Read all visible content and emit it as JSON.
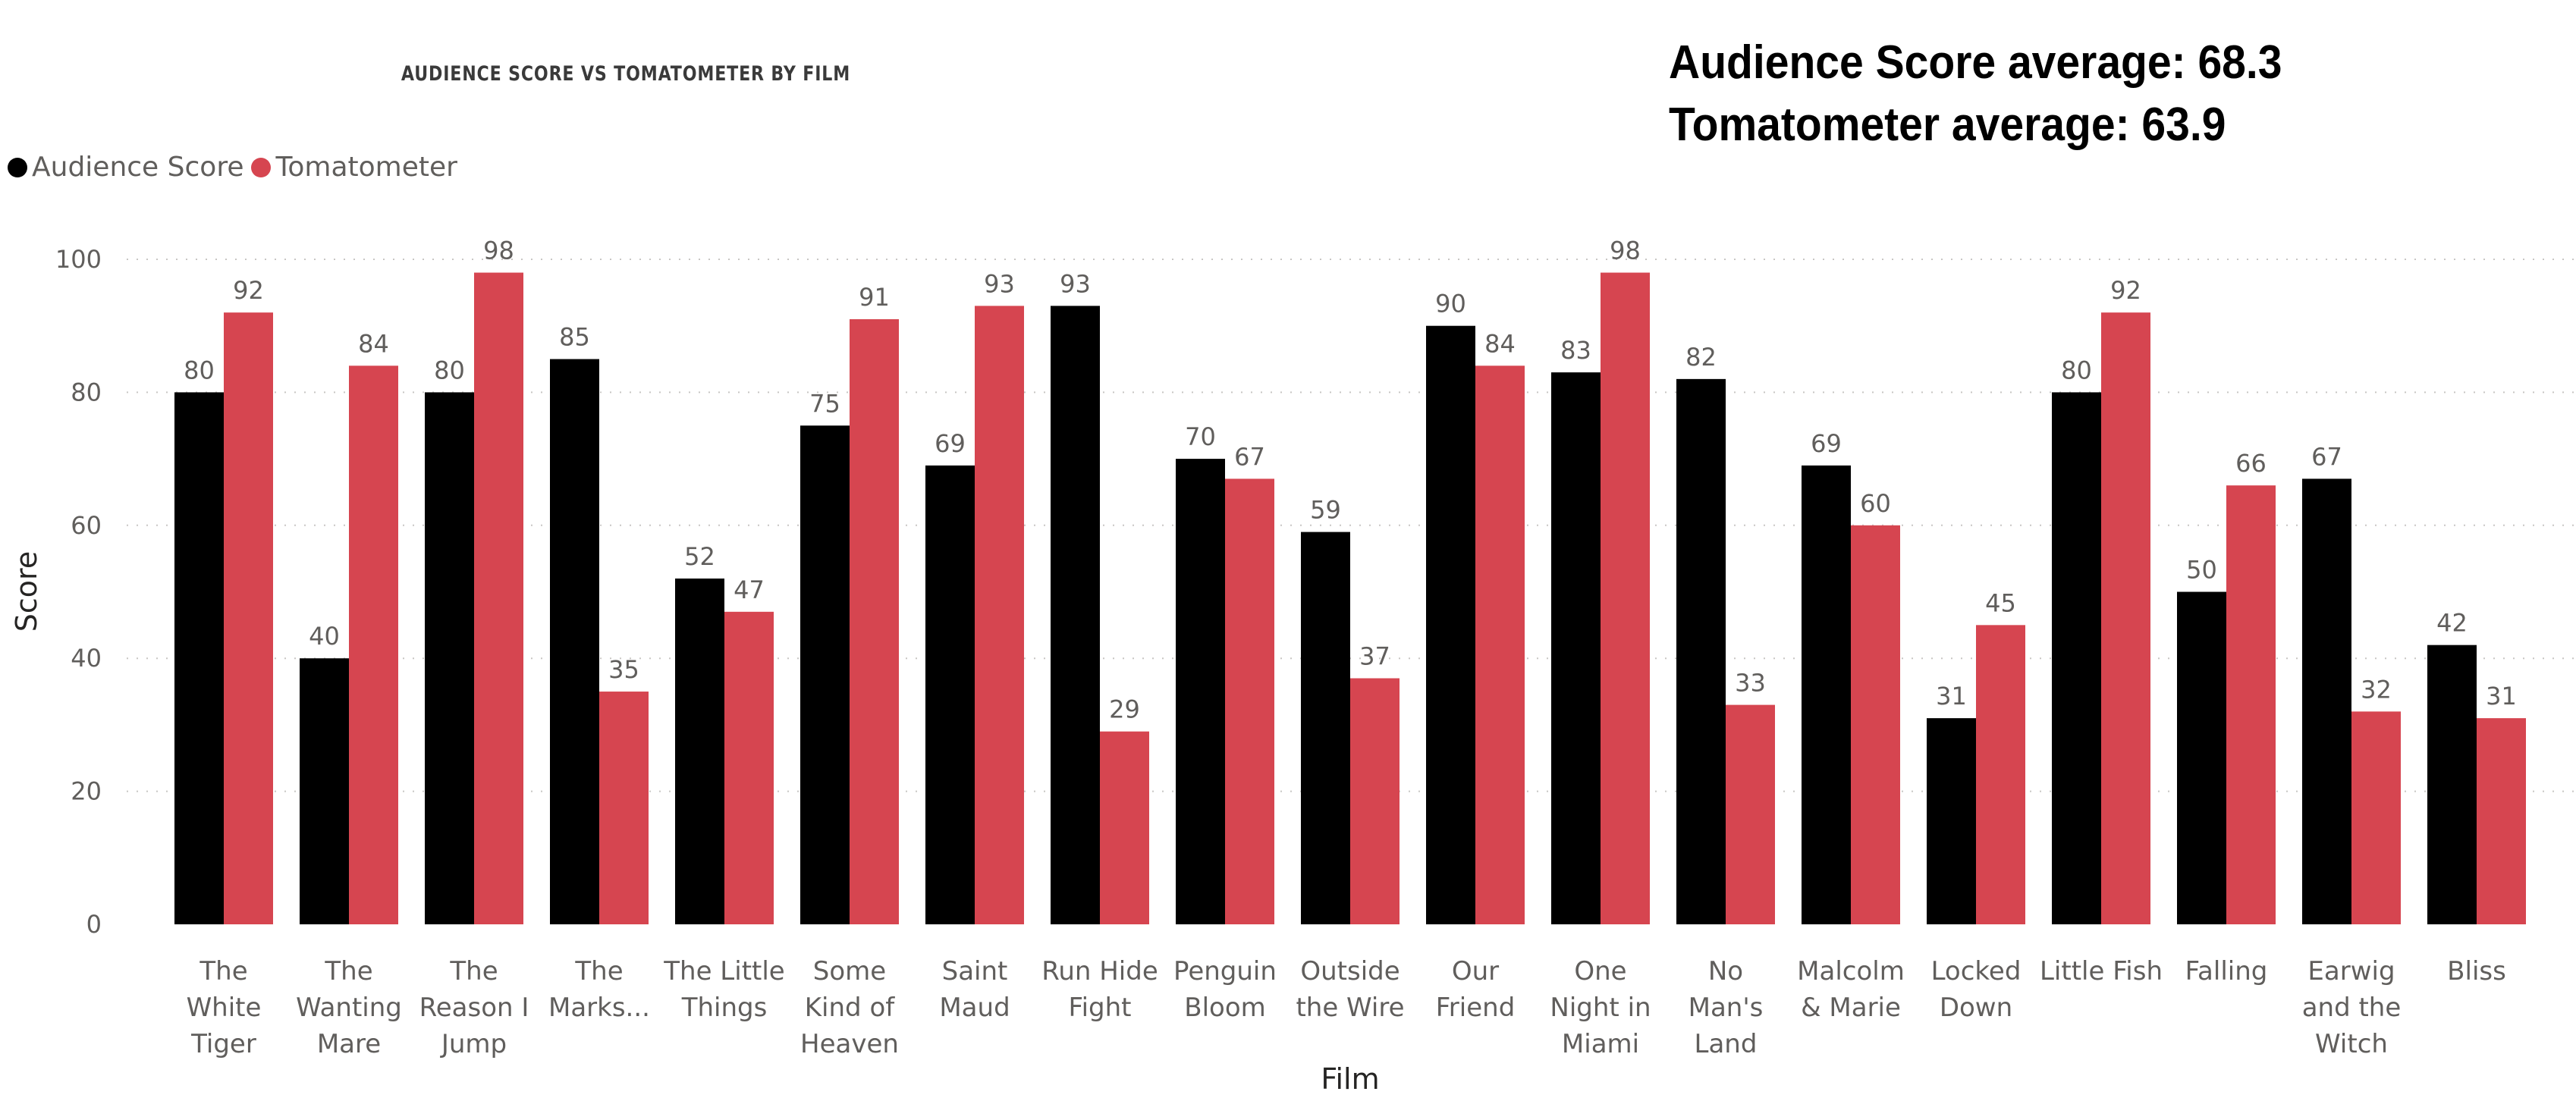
{
  "chart_data": {
    "type": "bar",
    "title": "AUDIENCE SCORE VS TOMATOMETER BY FILM",
    "xlabel": "Film",
    "ylabel": "Score",
    "ylim": [
      0,
      100
    ],
    "yticks": [
      0,
      20,
      40,
      60,
      80,
      100
    ],
    "grid": true,
    "legend_position": "top-left",
    "categories": [
      [
        "The",
        "White",
        "Tiger"
      ],
      [
        "The",
        "Wanting",
        "Mare"
      ],
      [
        "The",
        "Reason I",
        "Jump"
      ],
      [
        "The",
        "Marks..."
      ],
      [
        "The Little",
        "Things"
      ],
      [
        "Some",
        "Kind of",
        "Heaven"
      ],
      [
        "Saint",
        "Maud"
      ],
      [
        "Run Hide",
        "Fight"
      ],
      [
        "Penguin",
        "Bloom"
      ],
      [
        "Outside",
        "the Wire"
      ],
      [
        "Our",
        "Friend"
      ],
      [
        "One",
        "Night in",
        "Miami"
      ],
      [
        "No",
        "Man's",
        "Land"
      ],
      [
        "Malcolm",
        "& Marie"
      ],
      [
        "Locked",
        "Down"
      ],
      [
        "Little Fish"
      ],
      [
        "Falling"
      ],
      [
        "Earwig",
        "and the",
        "Witch"
      ],
      [
        "Bliss"
      ]
    ],
    "series": [
      {
        "name": "Audience Score",
        "color": "#000000",
        "values": [
          80,
          40,
          80,
          85,
          52,
          75,
          69,
          93,
          70,
          59,
          90,
          83,
          82,
          69,
          31,
          80,
          50,
          67,
          42
        ]
      },
      {
        "name": "Tomatometer",
        "color": "#D64550",
        "values": [
          92,
          84,
          98,
          35,
          47,
          91,
          93,
          29,
          67,
          37,
          84,
          98,
          33,
          60,
          45,
          92,
          66,
          32,
          31
        ]
      }
    ]
  },
  "cards": {
    "audience_avg": "Audience Score average: 68.3",
    "tomatometer_avg": "Tomatometer average: 63.9"
  }
}
